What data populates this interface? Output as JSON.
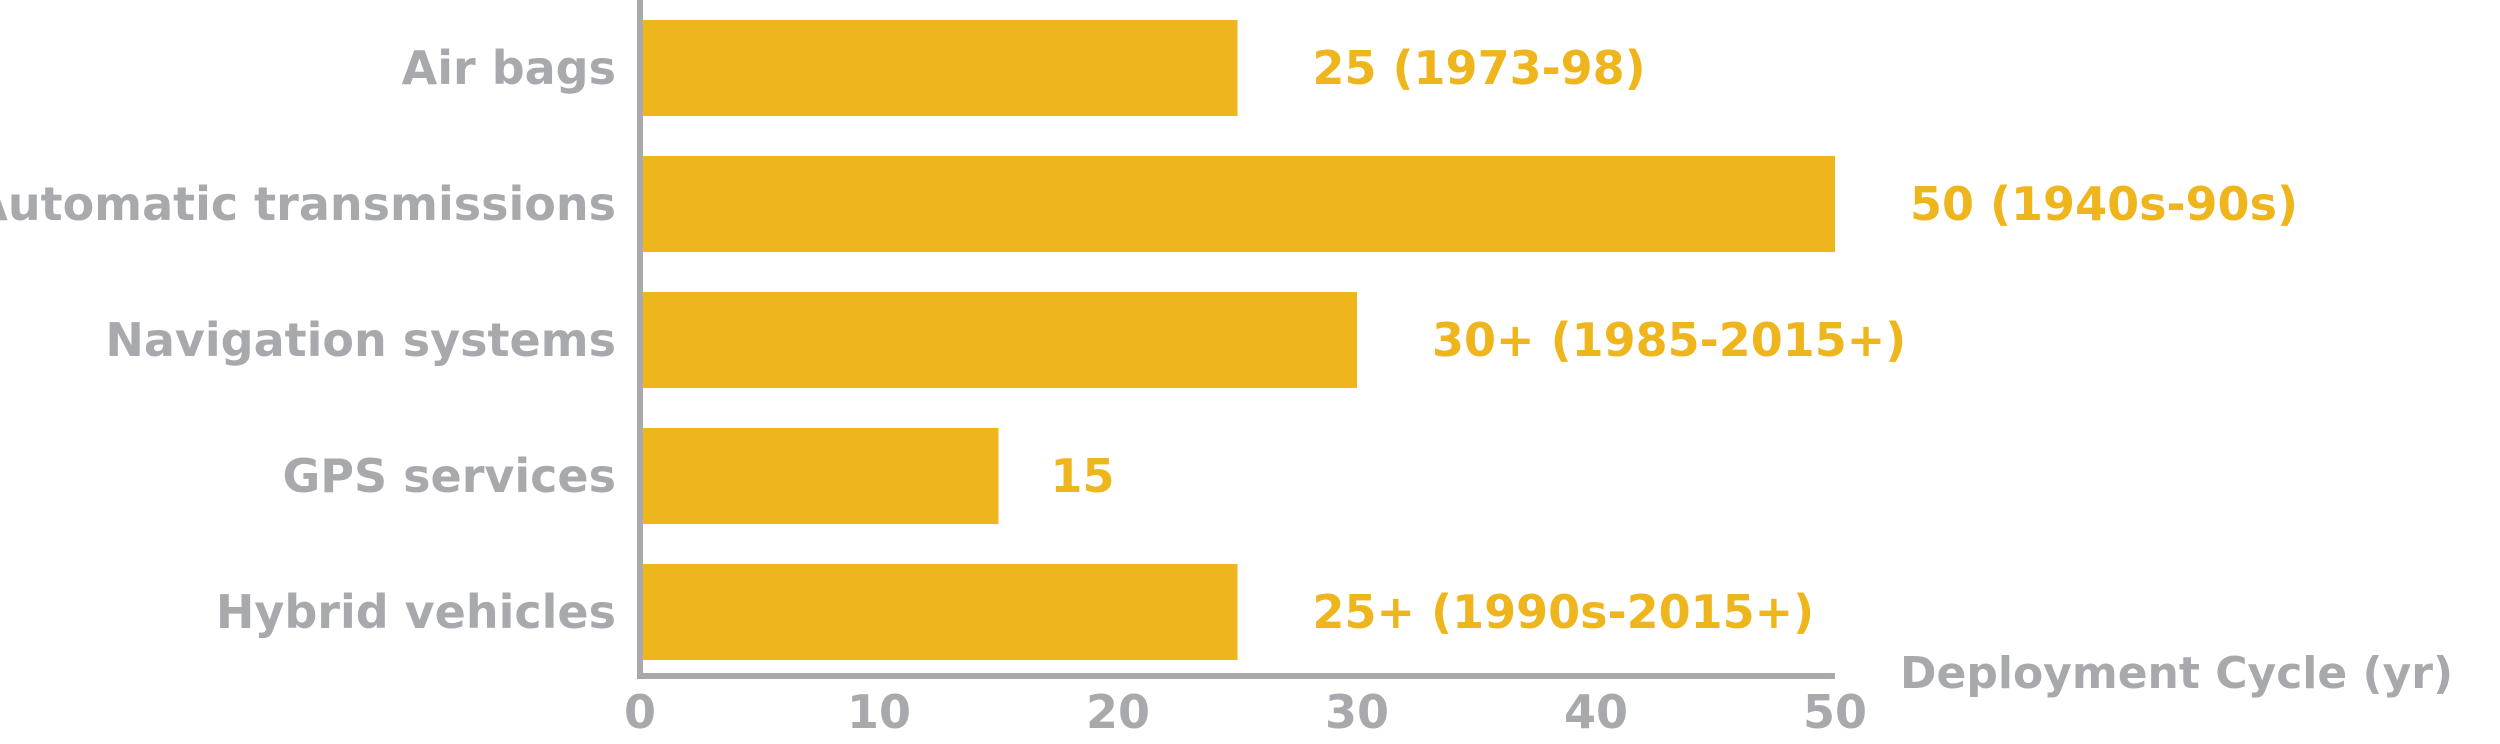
{
  "chart_data": {
    "type": "bar",
    "orientation": "horizontal",
    "categories": [
      "Air bags",
      "Automatic transmissions",
      "Navigation systems",
      "GPS services",
      "Hybrid vehicles"
    ],
    "values": [
      25,
      50,
      30,
      15,
      25
    ],
    "data_labels": [
      "25 (1973-98)",
      "50 (1940s-90s)",
      "30+ (1985-2015+)",
      "15",
      "25+ (1990s-2015+)"
    ],
    "xlabel": "Deployment Cycle (yr)",
    "ylabel": "",
    "title": "",
    "xlim": [
      0,
      50
    ],
    "x_ticks": [
      0,
      10,
      20,
      30,
      40,
      50
    ],
    "grid": false,
    "legend": "none",
    "colors": {
      "bar": "#EFB51D",
      "data_label": "#EFB51D",
      "axis_text": "#A7A9AC",
      "axis_line": "#A7A9AC",
      "background": "#FFFFFF"
    }
  }
}
